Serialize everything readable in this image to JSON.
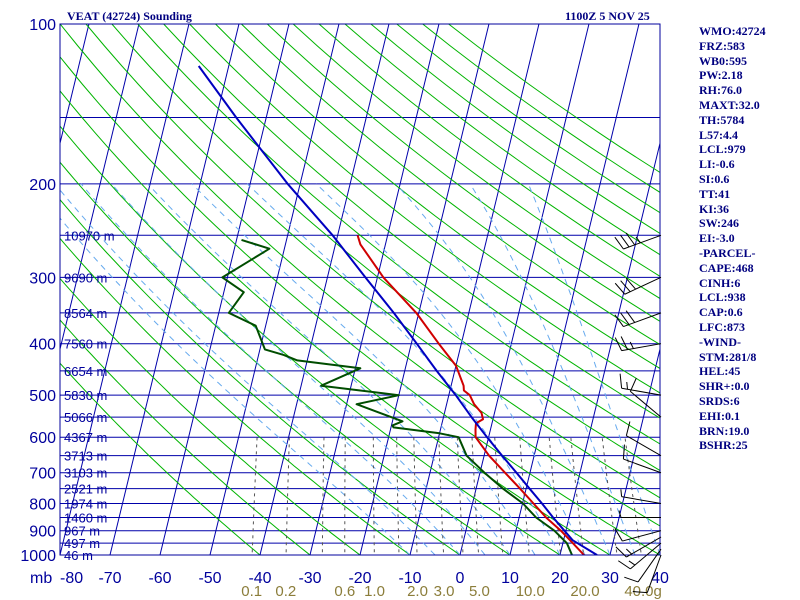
{
  "header": {
    "station_title": "VEAT (42724) Sounding",
    "datetime": "1100Z  5 NOV 25"
  },
  "stats": [
    "WMO:42724",
    "FRZ:583",
    "WB0:595",
    "PW:2.18",
    "RH:76.0",
    "MAXT:32.0",
    "TH:5784",
    "L57:4.4",
    "LCL:979",
    "LI:-0.6",
    "SI:0.6",
    "TT:41",
    "KI:36",
    "SW:246",
    "EI:-3.0",
    "-PARCEL-",
    "CAPE:468",
    "CINH:6",
    "LCL:938",
    "CAP:0.6",
    "LFC:873",
    "-WIND-",
    "STM:281/8",
    "HEL:45",
    "SHR+:0.0",
    "SRDS:6",
    "EHI:0.1",
    "BRN:19.0",
    "BSHR:25"
  ],
  "colors": {
    "background": "#ffffff",
    "frame": "#00009c",
    "text": "#000080",
    "isotherm_isobar": "#0000aa",
    "dry_adiabat": "#00b400",
    "moist_adiabat": "#66aaee",
    "mixing_ratio": "#555555",
    "mixing_ratio_label": "#8b7d3a",
    "temperature": "#d00000",
    "dewpoint": "#004d00",
    "parcel": "#0000c0",
    "wind_barb": "#000000"
  },
  "chart_data": {
    "type": "line",
    "title": "VEAT (42724) Sounding",
    "subtitle": "1100Z  5 NOV 25",
    "xlabel": "",
    "ylabel": "mb",
    "y_scale": "log",
    "ylim": [
      1000,
      100
    ],
    "xlim": [
      -80,
      40
    ],
    "x_ticks": [
      -80,
      -70,
      -60,
      -50,
      -40,
      -30,
      -20,
      -10,
      0,
      10,
      20,
      30,
      40
    ],
    "x_tick_labels": [
      "-80",
      "-70",
      "-60",
      "-50",
      "-40",
      "-30",
      "-20",
      "-10",
      "0",
      "10",
      "20",
      "30",
      "40"
    ],
    "y_ticks": [
      100,
      200,
      300,
      400,
      500,
      600,
      700,
      800,
      900,
      1000
    ],
    "y_tick_labels": [
      "100",
      "200",
      "300",
      "400",
      "500",
      "600",
      "700",
      "800",
      "900",
      "1000"
    ],
    "mixing_ratio_labels": [
      "0.1",
      "0.2",
      "0.6",
      "1.0",
      "2.0",
      "3.0",
      "5.0",
      "10.0",
      "20.0",
      "40.0g"
    ],
    "height_labels": [
      {
        "p": 1000,
        "label": "46 m"
      },
      {
        "p": 950,
        "label": "497 m"
      },
      {
        "p": 900,
        "label": "967 m"
      },
      {
        "p": 850,
        "label": "1460 m"
      },
      {
        "p": 800,
        "label": "1974 m"
      },
      {
        "p": 750,
        "label": "2521 m"
      },
      {
        "p": 700,
        "label": "3103 m"
      },
      {
        "p": 650,
        "label": "3713 m"
      },
      {
        "p": 600,
        "label": "4367 m"
      },
      {
        "p": 550,
        "label": "5066 m"
      },
      {
        "p": 500,
        "label": "5830 m"
      },
      {
        "p": 450,
        "label": "6654 m"
      },
      {
        "p": 400,
        "label": "7560 m"
      },
      {
        "p": 350,
        "label": "8564 m"
      },
      {
        "p": 300,
        "label": "9690 m"
      },
      {
        "p": 250,
        "label": "10970 m"
      }
    ],
    "grid": true,
    "series": [
      {
        "key": "temperature",
        "color": "#d00000",
        "points": [
          [
            1000,
            24.8
          ],
          [
            950,
            22.0
          ],
          [
            900,
            19.0
          ],
          [
            850,
            15.4
          ],
          [
            800,
            12.2
          ],
          [
            750,
            8.8
          ],
          [
            700,
            5.0
          ],
          [
            650,
            1.0
          ],
          [
            600,
            -2.6
          ],
          [
            580,
            -3.0
          ],
          [
            565,
            -3.2
          ],
          [
            555,
            -2.0
          ],
          [
            540,
            -2.6
          ],
          [
            520,
            -4.5
          ],
          [
            500,
            -5.8
          ],
          [
            490,
            -7.2
          ],
          [
            480,
            -7.5
          ],
          [
            440,
            -10.0
          ],
          [
            400,
            -14.5
          ],
          [
            350,
            -20.5
          ],
          [
            300,
            -28.8
          ],
          [
            260,
            -35.0
          ],
          [
            250,
            -36.0
          ]
        ]
      },
      {
        "key": "dewpoint",
        "color": "#004d00",
        "points": [
          [
            1000,
            22.4
          ],
          [
            950,
            20.8
          ],
          [
            900,
            17.7
          ],
          [
            850,
            13.4
          ],
          [
            800,
            10.1
          ],
          [
            750,
            5.4
          ],
          [
            700,
            0.9
          ],
          [
            650,
            -3.5
          ],
          [
            600,
            -6.0
          ],
          [
            590,
            -10.0
          ],
          [
            575,
            -19.5
          ],
          [
            570,
            -19.8
          ],
          [
            560,
            -18.0
          ],
          [
            520,
            -28.0
          ],
          [
            500,
            -20.0
          ],
          [
            480,
            -36.0
          ],
          [
            445,
            -29.0
          ],
          [
            430,
            -42.0
          ],
          [
            420,
            -45.0
          ],
          [
            410,
            -49.0
          ],
          [
            370,
            -52.0
          ],
          [
            350,
            -58.0
          ],
          [
            320,
            -56.0
          ],
          [
            300,
            -61.0
          ],
          [
            265,
            -53.0
          ],
          [
            255,
            -59.0
          ]
        ]
      },
      {
        "key": "parcel",
        "color": "#0000c0",
        "points": [
          [
            1000,
            27.4
          ],
          [
            938,
            21.8
          ],
          [
            900,
            19.7
          ],
          [
            850,
            16.8
          ],
          [
            800,
            13.9
          ],
          [
            750,
            10.7
          ],
          [
            700,
            7.3
          ],
          [
            650,
            3.6
          ],
          [
            600,
            -0.3
          ],
          [
            550,
            -4.4
          ],
          [
            500,
            -8.6
          ],
          [
            450,
            -13.6
          ],
          [
            400,
            -18.9
          ],
          [
            350,
            -25.0
          ],
          [
            300,
            -32.4
          ],
          [
            250,
            -41.0
          ],
          [
            200,
            -52.5
          ],
          [
            150,
            -66.0
          ],
          [
            120,
            -76.0
          ]
        ]
      }
    ],
    "wind_barbs": [
      {
        "p": 1000,
        "dir": 200,
        "kt": 10
      },
      {
        "p": 975,
        "dir": 215,
        "kt": 10
      },
      {
        "p": 950,
        "dir": 230,
        "kt": 15
      },
      {
        "p": 925,
        "dir": 240,
        "kt": 15
      },
      {
        "p": 900,
        "dir": 255,
        "kt": 10
      },
      {
        "p": 850,
        "dir": 270,
        "kt": 5
      },
      {
        "p": 800,
        "dir": 280,
        "kt": 5
      },
      {
        "p": 700,
        "dir": 290,
        "kt": 10
      },
      {
        "p": 650,
        "dir": 300,
        "kt": 10
      },
      {
        "p": 550,
        "dir": 310,
        "kt": 10
      },
      {
        "p": 500,
        "dir": 280,
        "kt": 15
      },
      {
        "p": 400,
        "dir": 260,
        "kt": 25
      },
      {
        "p": 350,
        "dir": 250,
        "kt": 30
      },
      {
        "p": 300,
        "dir": 245,
        "kt": 30
      },
      {
        "p": 250,
        "dir": 250,
        "kt": 35
      }
    ]
  }
}
